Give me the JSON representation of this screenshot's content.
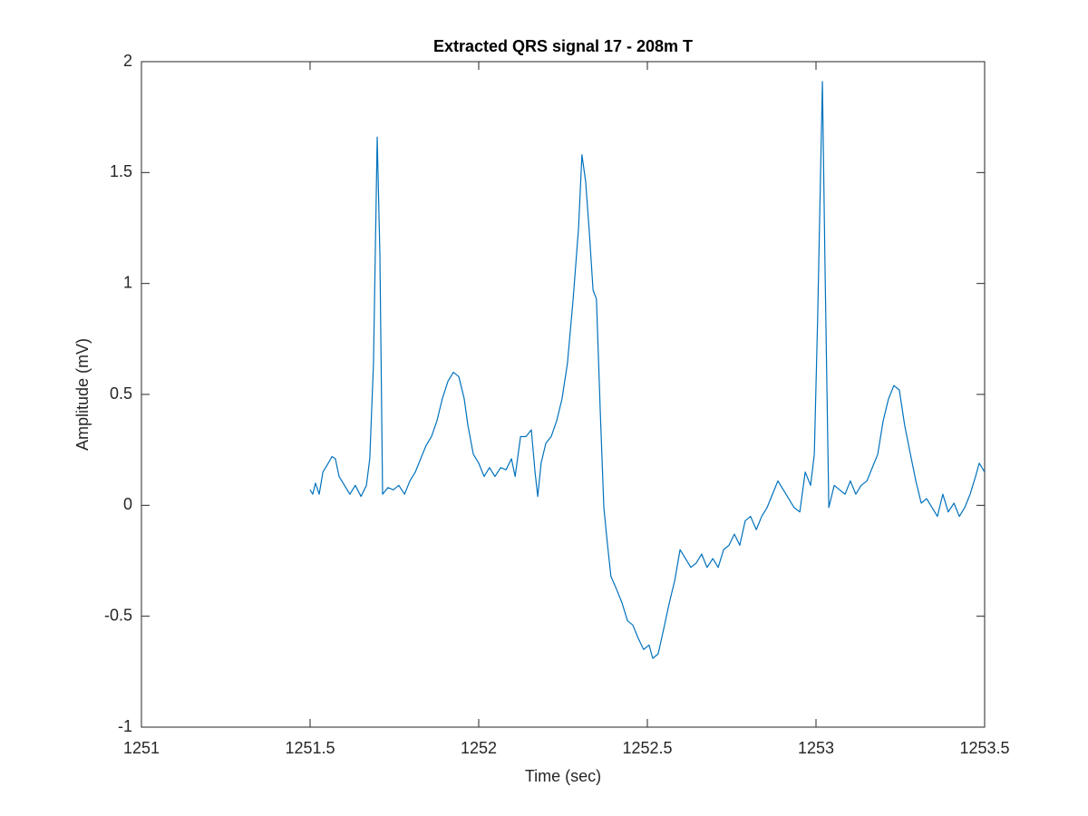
{
  "chart_data": {
    "type": "line",
    "title": "Extracted QRS signal 17 - 208m T",
    "xlabel": "Time (sec)",
    "ylabel": "Amplitude (mV)",
    "xlim": [
      1251,
      1253.5
    ],
    "xticks": [
      1251,
      1251.5,
      1252,
      1252.5,
      1253,
      1253.5
    ],
    "ylim": [
      -1,
      2
    ],
    "yticks": [
      -1,
      -0.5,
      0,
      0.5,
      1,
      1.5,
      2
    ],
    "grid": false,
    "series": [
      {
        "color": "#0072bd",
        "x": [
          1251.5,
          1251.508,
          1251.516,
          1251.527,
          1251.538,
          1251.554,
          1251.565,
          1251.575,
          1251.586,
          1251.602,
          1251.618,
          1251.634,
          1251.651,
          1251.667,
          1251.677,
          1251.688,
          1251.699,
          1251.707,
          1251.715,
          1251.731,
          1251.747,
          1251.763,
          1251.78,
          1251.796,
          1251.812,
          1251.828,
          1251.844,
          1251.86,
          1251.876,
          1251.892,
          1251.909,
          1251.925,
          1251.941,
          1251.957,
          1251.968,
          1251.984,
          1252.0,
          1252.016,
          1252.032,
          1252.048,
          1252.065,
          1252.081,
          1252.097,
          1252.108,
          1252.124,
          1252.14,
          1252.156,
          1252.167,
          1252.175,
          1252.185,
          1252.199,
          1252.215,
          1252.231,
          1252.247,
          1252.263,
          1252.28,
          1252.296,
          1252.306,
          1252.317,
          1252.328,
          1252.339,
          1252.349,
          1252.36,
          1252.371,
          1252.382,
          1252.392,
          1252.409,
          1252.425,
          1252.441,
          1252.457,
          1252.473,
          1252.489,
          1252.505,
          1252.516,
          1252.532,
          1252.548,
          1252.565,
          1252.581,
          1252.597,
          1252.613,
          1252.629,
          1252.645,
          1252.661,
          1252.677,
          1252.694,
          1252.71,
          1252.726,
          1252.742,
          1252.758,
          1252.774,
          1252.79,
          1252.806,
          1252.823,
          1252.839,
          1252.855,
          1252.871,
          1252.887,
          1252.903,
          1252.919,
          1252.935,
          1252.952,
          1252.968,
          1252.984,
          1252.995,
          1253.005,
          1253.019,
          1253.027,
          1253.038,
          1253.054,
          1253.07,
          1253.086,
          1253.102,
          1253.118,
          1253.134,
          1253.151,
          1253.167,
          1253.183,
          1253.199,
          1253.215,
          1253.231,
          1253.247,
          1253.263,
          1253.28,
          1253.296,
          1253.312,
          1253.328,
          1253.344,
          1253.36,
          1253.376,
          1253.392,
          1253.409,
          1253.425,
          1253.441,
          1253.457,
          1253.473,
          1253.484,
          1253.5
        ],
        "values": [
          0.07,
          0.05,
          0.1,
          0.05,
          0.15,
          0.19,
          0.22,
          0.21,
          0.13,
          0.09,
          0.05,
          0.09,
          0.04,
          0.09,
          0.21,
          0.64,
          1.66,
          1.13,
          0.05,
          0.08,
          0.07,
          0.09,
          0.05,
          0.11,
          0.15,
          0.21,
          0.27,
          0.31,
          0.38,
          0.48,
          0.56,
          0.6,
          0.58,
          0.48,
          0.36,
          0.23,
          0.19,
          0.13,
          0.17,
          0.13,
          0.17,
          0.16,
          0.21,
          0.13,
          0.31,
          0.31,
          0.34,
          0.15,
          0.04,
          0.19,
          0.28,
          0.31,
          0.38,
          0.48,
          0.64,
          0.93,
          1.25,
          1.58,
          1.46,
          1.23,
          0.97,
          0.93,
          0.44,
          -0.01,
          -0.18,
          -0.32,
          -0.38,
          -0.44,
          -0.52,
          -0.54,
          -0.6,
          -0.65,
          -0.63,
          -0.69,
          -0.67,
          -0.56,
          -0.44,
          -0.34,
          -0.2,
          -0.24,
          -0.28,
          -0.26,
          -0.22,
          -0.28,
          -0.24,
          -0.28,
          -0.2,
          -0.18,
          -0.13,
          -0.18,
          -0.07,
          -0.05,
          -0.11,
          -0.05,
          -0.01,
          0.05,
          0.11,
          0.07,
          0.03,
          -0.01,
          -0.03,
          0.15,
          0.09,
          0.23,
          0.85,
          1.91,
          1.05,
          -0.01,
          0.09,
          0.07,
          0.05,
          0.11,
          0.05,
          0.09,
          0.11,
          0.17,
          0.23,
          0.38,
          0.48,
          0.54,
          0.52,
          0.36,
          0.23,
          0.11,
          0.01,
          0.03,
          -0.01,
          -0.05,
          0.05,
          -0.03,
          0.01,
          -0.05,
          -0.01,
          0.05,
          0.13,
          0.19,
          0.15
        ]
      }
    ]
  }
}
